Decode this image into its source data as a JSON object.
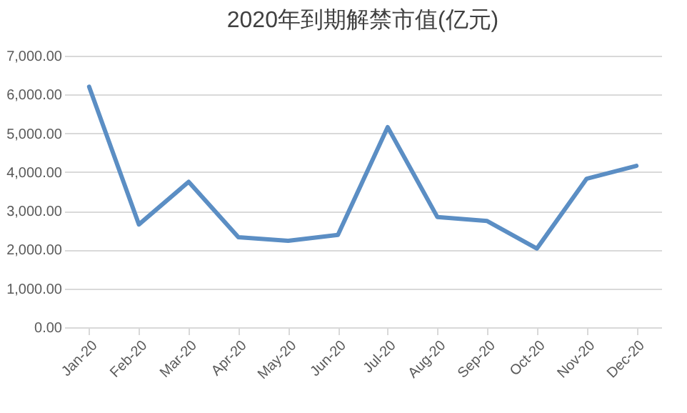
{
  "chart_data": {
    "type": "line",
    "title": "2020年到期解禁市值(亿元)",
    "categories": [
      "Jan-20",
      "Feb-20",
      "Mar-20",
      "Apr-20",
      "May-20",
      "Jun-20",
      "Jul-20",
      "Aug-20",
      "Sep-20",
      "Oct-20",
      "Nov-20",
      "Dec-20"
    ],
    "series": [
      {
        "color": "#5b8ec4",
        "values": [
          6200,
          2650,
          3750,
          2320,
          2230,
          2380,
          5160,
          2840,
          2740,
          2030,
          3830,
          4160
        ]
      }
    ],
    "ylim": [
      0,
      7000
    ],
    "yticks": [
      {
        "value": 0,
        "label": "0.00"
      },
      {
        "value": 1000,
        "label": "1,000.00"
      },
      {
        "value": 2000,
        "label": "2,000.00"
      },
      {
        "value": 3000,
        "label": "3,000.00"
      },
      {
        "value": 4000,
        "label": "4,000.00"
      },
      {
        "value": 5000,
        "label": "5,000.00"
      },
      {
        "value": 6000,
        "label": "6,000.00"
      },
      {
        "value": 7000,
        "label": "7,000.00"
      }
    ],
    "grid": "y",
    "marker": "none",
    "line_style": "solid"
  }
}
